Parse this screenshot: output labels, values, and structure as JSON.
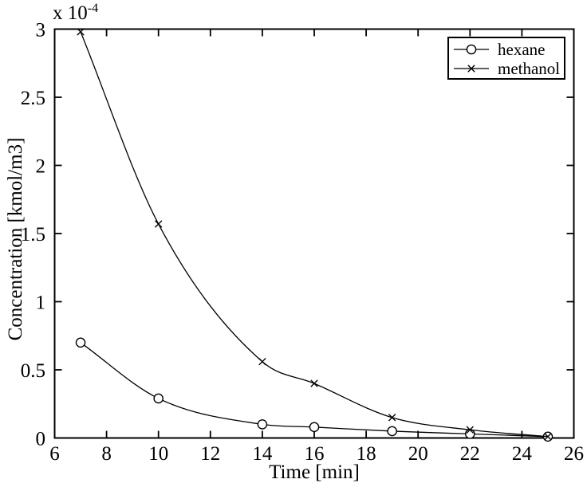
{
  "figure": {
    "y_axis_multiplier": "x 10",
    "y_axis_multiplier_exponent": "-4"
  },
  "chart_data": {
    "type": "line",
    "xlabel": "Time [min]",
    "ylabel": "Concentration [kmol/m3]",
    "y_unit_multiplier": "1e-4",
    "xlim": [
      6,
      26
    ],
    "ylim": [
      0,
      3
    ],
    "xticks": [
      6,
      8,
      10,
      12,
      14,
      16,
      18,
      20,
      22,
      24,
      26
    ],
    "xtick_labels": [
      "6",
      "8",
      "10",
      "12",
      "14",
      "16",
      "18",
      "20",
      "22",
      "24",
      "26"
    ],
    "yticks": [
      0,
      0.5,
      1,
      1.5,
      2,
      2.5,
      3
    ],
    "ytick_labels": [
      "0",
      "0.5",
      "1",
      "1.5",
      "2",
      "2.5",
      "3"
    ],
    "x": [
      7,
      10,
      14,
      16,
      19,
      22,
      25
    ],
    "series": [
      {
        "name": "hexane",
        "marker": "circle",
        "values": [
          0.7,
          0.29,
          0.1,
          0.08,
          0.05,
          0.03,
          0.01
        ]
      },
      {
        "name": "methanol",
        "marker": "x",
        "values": [
          2.98,
          1.57,
          0.56,
          0.4,
          0.15,
          0.06,
          0.01
        ]
      }
    ],
    "legend": {
      "position": "top-right",
      "entries": [
        "hexane",
        "methanol"
      ]
    },
    "grid": false,
    "line_color": "#000000",
    "background": "#ffffff"
  }
}
